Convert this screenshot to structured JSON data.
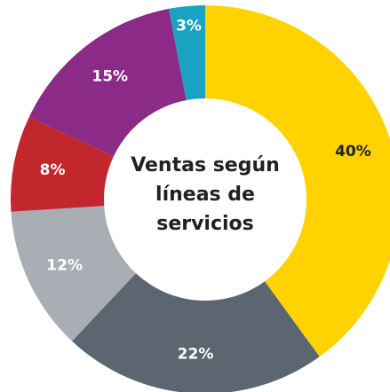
{
  "chart_data": {
    "type": "donut",
    "title": "Ventas según líneas de servicios",
    "values": [
      40,
      22,
      12,
      8,
      15,
      3
    ],
    "value_labels": [
      "40%",
      "22%",
      "12%",
      "8%",
      "15%",
      "3%"
    ],
    "colors": [
      "#FFD200",
      "#5B6670",
      "#A8AEB4",
      "#C1272D",
      "#8C2A87",
      "#19A3C1"
    ]
  }
}
